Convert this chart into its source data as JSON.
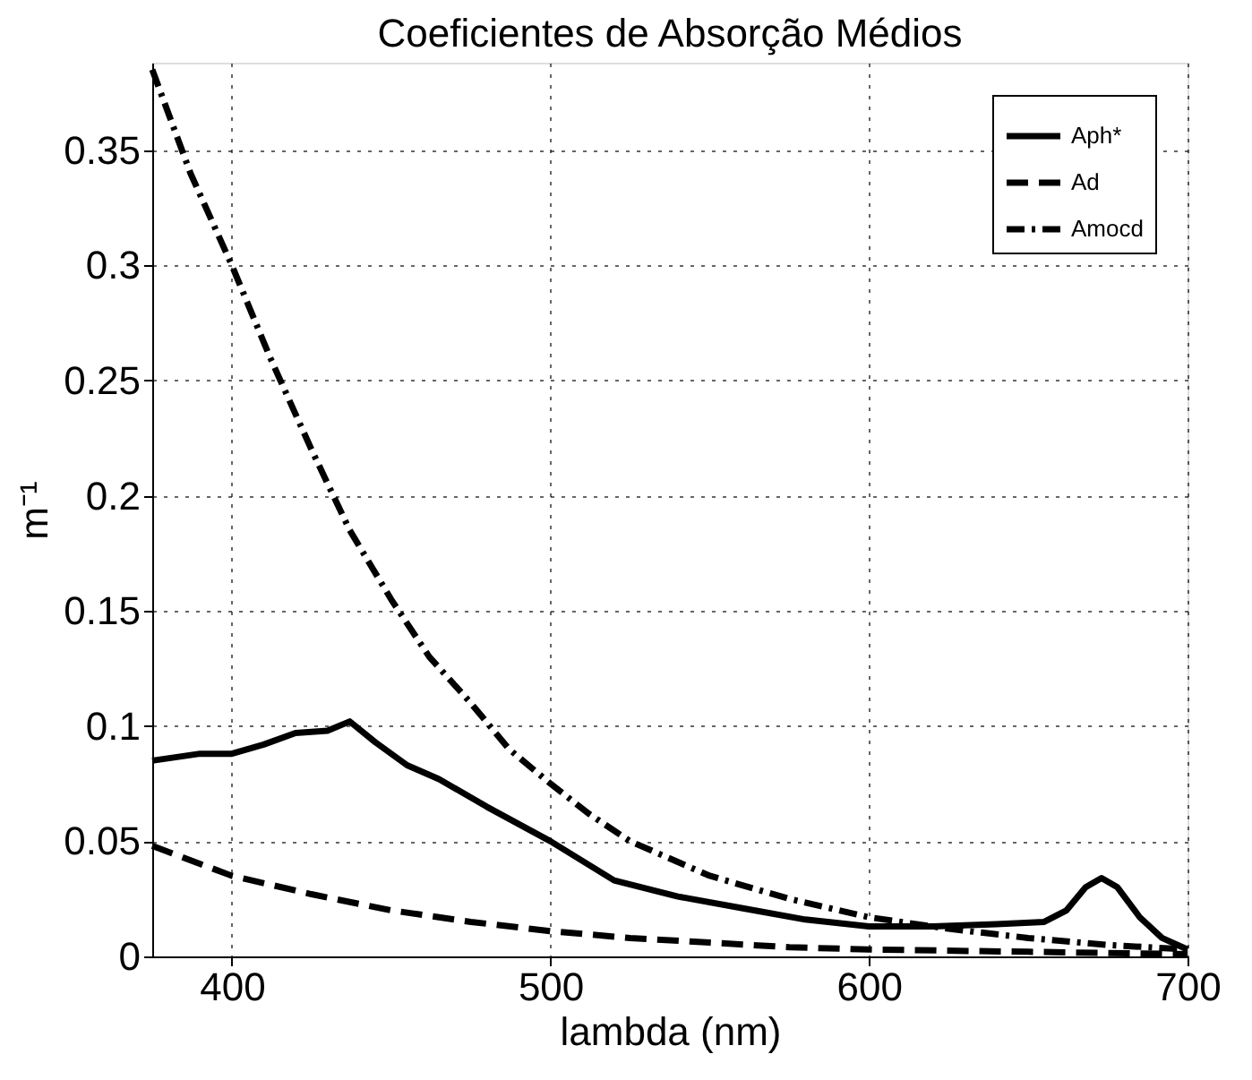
{
  "chart_data": {
    "type": "line",
    "title": "Coeficientes de Absorção Médios",
    "xlabel": "lambda (nm)",
    "ylabel": "m⁻¹",
    "xlim": [
      375,
      700
    ],
    "xticks": [
      400,
      500,
      600,
      700
    ],
    "ylim": [
      0,
      0.388
    ],
    "yticks": [
      {
        "value": 0,
        "label": "0"
      },
      0.05,
      {
        "value": 0.1,
        "label": "0.1"
      },
      0.15,
      {
        "value": 0.2,
        "label": "0.2"
      },
      0.25,
      {
        "value": 0.3,
        "label": "0.3"
      },
      0.35
    ],
    "grid": true,
    "legend": "top right",
    "marker": "none",
    "series": [
      {
        "name": "Aph*",
        "color": "#000000",
        "line_style": "solid",
        "x": [
          375,
          390,
          400,
          410,
          420,
          430,
          437,
          445,
          455,
          465,
          480,
          500,
          520,
          540,
          560,
          580,
          600,
          620,
          640,
          655,
          662,
          668,
          673,
          678,
          685,
          692,
          700
        ],
        "values": [
          0.085,
          0.088,
          0.088,
          0.092,
          0.097,
          0.098,
          0.102,
          0.093,
          0.083,
          0.077,
          0.065,
          0.05,
          0.033,
          0.026,
          0.021,
          0.016,
          0.013,
          0.013,
          0.014,
          0.015,
          0.02,
          0.03,
          0.034,
          0.03,
          0.017,
          0.008,
          0.003
        ]
      },
      {
        "name": "Ad",
        "color": "#000000",
        "line_style": "dashed",
        "x": [
          375,
          400,
          425,
          450,
          475,
          500,
          525,
          550,
          575,
          600,
          650,
          700
        ],
        "values": [
          0.048,
          0.035,
          0.027,
          0.02,
          0.015,
          0.011,
          0.008,
          0.006,
          0.004,
          0.003,
          0.002,
          0.001
        ]
      },
      {
        "name": "Amocd",
        "color": "#000000",
        "line_style": "dashdot",
        "x": [
          375,
          387,
          400,
          412,
          425,
          437,
          450,
          462,
          475,
          487,
          500,
          512,
          525,
          550,
          575,
          600,
          625,
          650,
          675,
          700
        ],
        "values": [
          0.385,
          0.34,
          0.3,
          0.26,
          0.22,
          0.185,
          0.155,
          0.13,
          0.11,
          0.09,
          0.075,
          0.062,
          0.05,
          0.035,
          0.025,
          0.017,
          0.012,
          0.008,
          0.005,
          0.003
        ]
      }
    ]
  }
}
